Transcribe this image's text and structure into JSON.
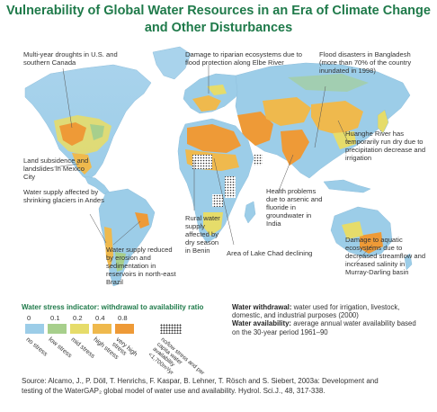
{
  "title_line1": "Vulnerability of Global Water Resources in an Era of Climate Change",
  "title_line2": "and Other Disturbances",
  "annotations": {
    "us_droughts": "Multi-year droughts in U.S. and southern Canada",
    "elbe": "Damage to riparian ecosystems due to flood protection along Elbe River",
    "bangladesh": "Flood disasters in Bangladesh (more than 70% of the country inundated in 1998)",
    "huanghe": "Huanghe River has temporarily run dry due to precipitation decrease and irrigation",
    "mexico": "Land subsidence and landslides in Mexico City",
    "andes": "Water supply affected by shrinking glaciers in Andes",
    "health": "Health problems due to arsenic and fluoride in groundwater in India",
    "benin": "Rural water supply affected by dry season in Benin",
    "chad": "Area of Lake Chad declining",
    "brazil": "Water supply reduced by erosion and sedimentation in reservoirs in north-east Brazil",
    "murray": "Damage to aquatic ecosystems due to decreased streamflow and increased salinity in Murray-Darling basin"
  },
  "legend": {
    "title": "Water stress indicator: withdrawal to availability ratio",
    "ticks": [
      "0",
      "0.1",
      "0.2",
      "0.4",
      "0.8"
    ],
    "categories": [
      "no stress",
      "low stress",
      "mid stress",
      "high stress",
      "very high stress",
      "no/low stress and per capita water availability <1,700m³/yr"
    ],
    "colors": [
      "#9ccde8",
      "#a7cf8c",
      "#e6dc6a",
      "#efb94d",
      "#ee9a37"
    ]
  },
  "withdrawal_label": "Water withdrawal:",
  "withdrawal_text": "water used for irrigation, livestock, domestic, and industrial purposes (2000)",
  "availability_label": "Water availability:",
  "availability_text": "average annual water availability based on the 30-year period 1961–90",
  "source_line1": "Source: Alcamo, J., P. Döll, T. Henrichs, F. Kaspar, B. Lehner, T. Rösch and S. Siebert, 2003a: Development and",
  "source_line2": "testing of the WaterGAP₂ global model of water use and availability.  Hydrol. Sci.J., 48, 317-338."
}
